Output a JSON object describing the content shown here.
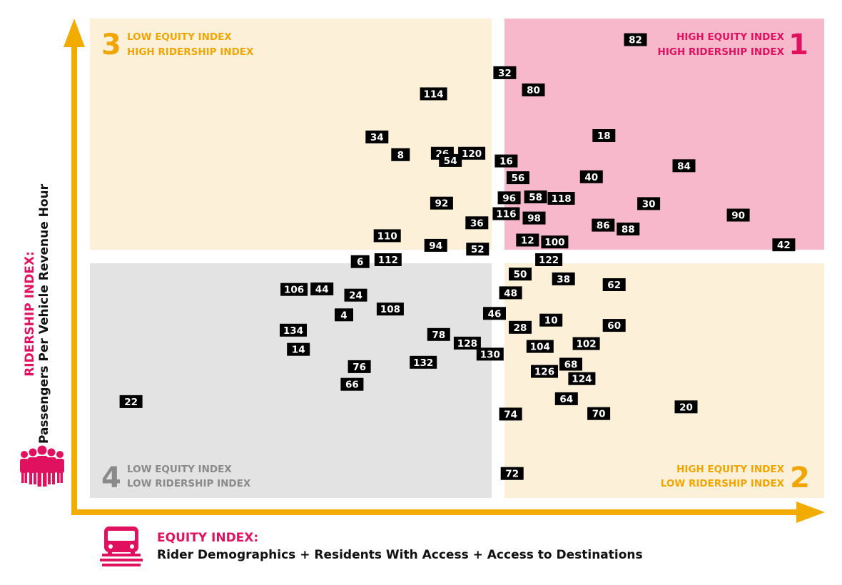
{
  "colors": {
    "q1_bg": "#f7b8cc",
    "q2_bg": "#fdf0d8",
    "q3_bg": "#fdf0d8",
    "q4_bg": "#e3e3e3",
    "axis": "#f2ac00",
    "q1_text": "#e0115f",
    "q2_text": "#f0a500",
    "q3_text": "#f0a500",
    "q4_text": "#8a8a8a",
    "accent": "#e0115f",
    "marker": "#000000"
  },
  "quadrants": [
    {
      "id": "q1",
      "number": "1",
      "line1": "HIGH EQUITY INDEX",
      "line2": "HIGH RIDERSHIP INDEX"
    },
    {
      "id": "q2",
      "number": "2",
      "line1": "HIGH EQUITY INDEX",
      "line2": "LOW RIDERSHIP INDEX"
    },
    {
      "id": "q3",
      "number": "3",
      "line1": "LOW EQUITY INDEX",
      "line2": "HIGH RIDERSHIP INDEX"
    },
    {
      "id": "q4",
      "number": "4",
      "line1": "LOW EQUITY INDEX",
      "line2": "LOW RIDERSHIP INDEX"
    }
  ],
  "axes": {
    "y_title_line1": "RIDERSHIP INDEX:",
    "y_title_line2": "Passengers Per Vehicle Revenue Hour",
    "x_title_line1": "EQUITY INDEX:",
    "x_title_line2": "Rider Demographics + Residents With Access + Access to Destinations",
    "y_icon": "people-group-icon",
    "x_icon": "bus-icon"
  },
  "chart_data": {
    "type": "scatter",
    "xlabel": "EQUITY INDEX: Rider Demographics + Residents With Access + Access to Destinations",
    "ylabel": "RIDERSHIP INDEX: Passengers Per Vehicle Revenue Hour",
    "xlim": [
      0,
      100
    ],
    "ylim": [
      0,
      100
    ],
    "grid": false,
    "points": [
      {
        "label": "82",
        "x": 74.3,
        "y": 95.6
      },
      {
        "label": "32",
        "x": 56.5,
        "y": 88.7
      },
      {
        "label": "80",
        "x": 60.4,
        "y": 85.1
      },
      {
        "label": "114",
        "x": 46.8,
        "y": 84.3
      },
      {
        "label": "18",
        "x": 70.0,
        "y": 75.6
      },
      {
        "label": "34",
        "x": 39.1,
        "y": 75.3
      },
      {
        "label": "26",
        "x": 48.0,
        "y": 71.9
      },
      {
        "label": "120",
        "x": 52.0,
        "y": 71.9
      },
      {
        "label": "8",
        "x": 42.3,
        "y": 71.6
      },
      {
        "label": "54",
        "x": 49.1,
        "y": 70.4
      },
      {
        "label": "16",
        "x": 56.7,
        "y": 70.3
      },
      {
        "label": "84",
        "x": 80.9,
        "y": 69.3
      },
      {
        "label": "56",
        "x": 58.3,
        "y": 66.8
      },
      {
        "label": "40",
        "x": 68.3,
        "y": 67.0
      },
      {
        "label": "96",
        "x": 57.1,
        "y": 62.6
      },
      {
        "label": "58",
        "x": 60.7,
        "y": 62.8
      },
      {
        "label": "118",
        "x": 64.2,
        "y": 62.5
      },
      {
        "label": "92",
        "x": 47.9,
        "y": 61.5
      },
      {
        "label": "30",
        "x": 76.1,
        "y": 61.4
      },
      {
        "label": "116",
        "x": 56.7,
        "y": 59.3
      },
      {
        "label": "98",
        "x": 60.5,
        "y": 58.4
      },
      {
        "label": "90",
        "x": 88.3,
        "y": 59.0
      },
      {
        "label": "36",
        "x": 52.7,
        "y": 57.4
      },
      {
        "label": "86",
        "x": 69.9,
        "y": 56.9
      },
      {
        "label": "88",
        "x": 73.3,
        "y": 56.1
      },
      {
        "label": "110",
        "x": 40.5,
        "y": 54.7
      },
      {
        "label": "12",
        "x": 59.6,
        "y": 53.8
      },
      {
        "label": "100",
        "x": 63.3,
        "y": 53.4
      },
      {
        "label": "94",
        "x": 47.1,
        "y": 52.7
      },
      {
        "label": "52",
        "x": 52.8,
        "y": 51.9
      },
      {
        "label": "42",
        "x": 94.5,
        "y": 52.8
      },
      {
        "label": "6",
        "x": 36.8,
        "y": 49.3
      },
      {
        "label": "112",
        "x": 40.6,
        "y": 49.7
      },
      {
        "label": "122",
        "x": 62.5,
        "y": 49.7
      },
      {
        "label": "50",
        "x": 58.6,
        "y": 46.7
      },
      {
        "label": "38",
        "x": 64.5,
        "y": 45.7
      },
      {
        "label": "62",
        "x": 71.4,
        "y": 44.5
      },
      {
        "label": "106",
        "x": 27.8,
        "y": 43.5
      },
      {
        "label": "44",
        "x": 31.6,
        "y": 43.6
      },
      {
        "label": "48",
        "x": 57.3,
        "y": 42.8
      },
      {
        "label": "24",
        "x": 36.2,
        "y": 42.3
      },
      {
        "label": "108",
        "x": 40.9,
        "y": 39.4
      },
      {
        "label": "4",
        "x": 34.6,
        "y": 38.2
      },
      {
        "label": "46",
        "x": 55.1,
        "y": 38.5
      },
      {
        "label": "10",
        "x": 62.8,
        "y": 37.1
      },
      {
        "label": "28",
        "x": 58.6,
        "y": 35.6
      },
      {
        "label": "60",
        "x": 71.4,
        "y": 36.0
      },
      {
        "label": "134",
        "x": 27.7,
        "y": 35.0
      },
      {
        "label": "78",
        "x": 47.5,
        "y": 34.1
      },
      {
        "label": "128",
        "x": 51.4,
        "y": 32.3
      },
      {
        "label": "102",
        "x": 67.6,
        "y": 32.2
      },
      {
        "label": "104",
        "x": 61.3,
        "y": 31.6
      },
      {
        "label": "130",
        "x": 54.5,
        "y": 30.0
      },
      {
        "label": "14",
        "x": 28.4,
        "y": 31.0
      },
      {
        "label": "68",
        "x": 65.5,
        "y": 27.9
      },
      {
        "label": "76",
        "x": 36.7,
        "y": 27.4
      },
      {
        "label": "132",
        "x": 45.4,
        "y": 28.3
      },
      {
        "label": "126",
        "x": 61.9,
        "y": 26.4
      },
      {
        "label": "124",
        "x": 67.0,
        "y": 24.9
      },
      {
        "label": "66",
        "x": 35.7,
        "y": 23.7
      },
      {
        "label": "64",
        "x": 64.9,
        "y": 20.7
      },
      {
        "label": "22",
        "x": 5.6,
        "y": 20.1
      },
      {
        "label": "20",
        "x": 81.2,
        "y": 19.0
      },
      {
        "label": "74",
        "x": 57.3,
        "y": 17.5
      },
      {
        "label": "70",
        "x": 69.3,
        "y": 17.6
      },
      {
        "label": "72",
        "x": 57.5,
        "y": 5.1
      }
    ]
  }
}
